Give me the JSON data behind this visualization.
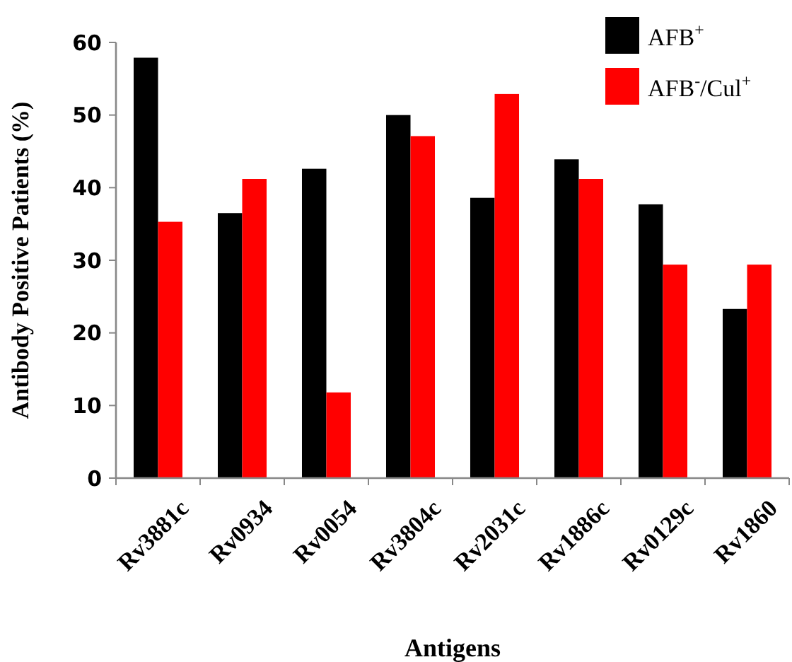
{
  "chart_data": {
    "type": "bar",
    "xlabel": "Antigens",
    "ylabel": "Antibody Positive Patients (%)",
    "categories": [
      "Rv3881c",
      "Rv0934",
      "Rv0054",
      "Rv3804c",
      "Rv2031c",
      "Rv1886c",
      "Rv0129c",
      "Rv1860"
    ],
    "series": [
      {
        "name": "AFB$^{+}$",
        "color": "#000000",
        "values": [
          57.9,
          36.5,
          42.6,
          50.0,
          38.6,
          43.9,
          37.7,
          23.3
        ]
      },
      {
        "name": "AFB$^{-}$/Cul$^{+}$",
        "color": "#ff0000",
        "values": [
          35.3,
          41.2,
          11.8,
          47.1,
          52.9,
          41.2,
          29.4,
          29.4
        ]
      }
    ],
    "ylim": [
      0,
      60
    ],
    "yticks": [
      0,
      10,
      20,
      30,
      40,
      50,
      60
    ],
    "grid": false,
    "legend": "top right"
  }
}
